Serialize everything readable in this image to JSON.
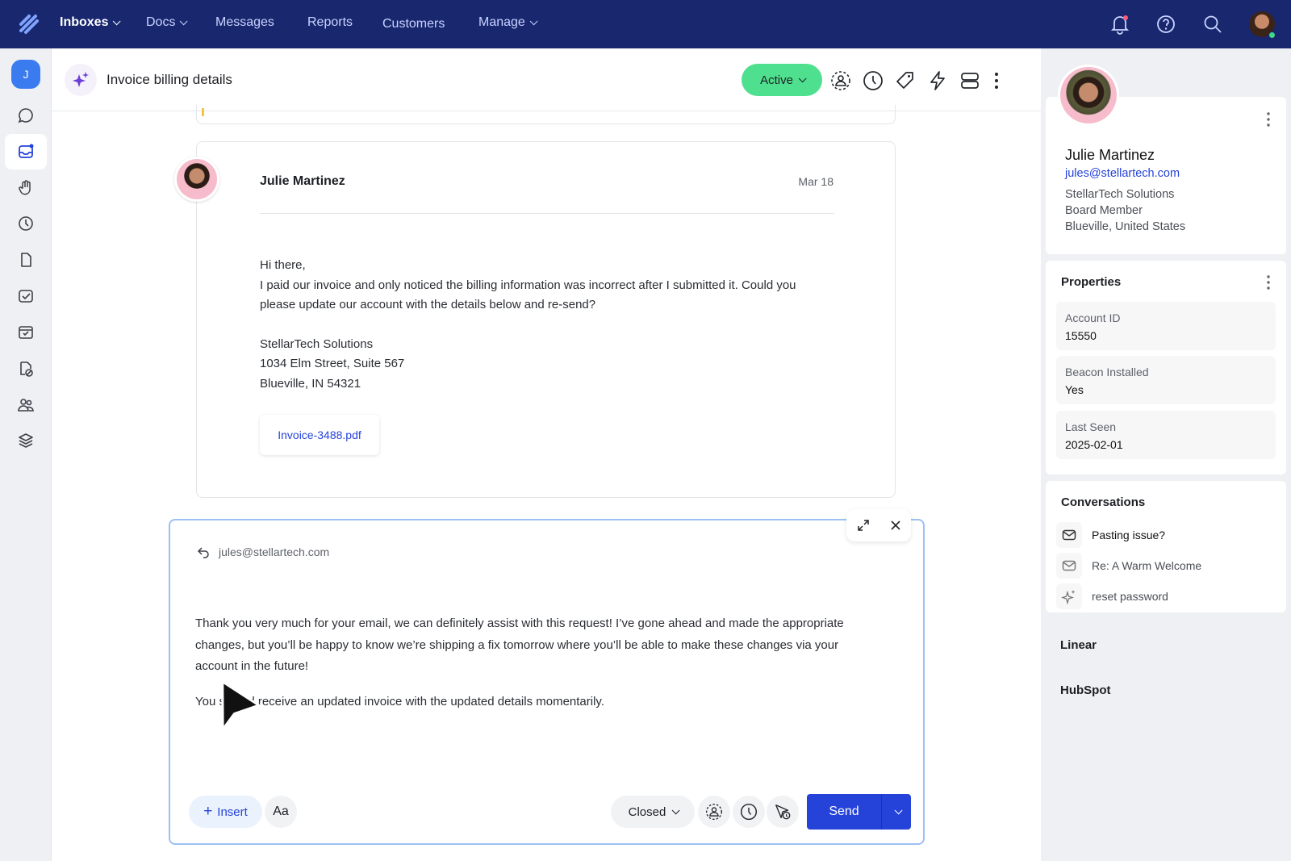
{
  "nav": {
    "items": [
      {
        "label": "Inboxes",
        "dropdown": true,
        "active": true
      },
      {
        "label": "Docs",
        "dropdown": true
      },
      {
        "label": "Messages"
      },
      {
        "label": "Reports"
      },
      {
        "label": "Customers"
      },
      {
        "label": "Manage",
        "dropdown": true
      }
    ],
    "icons": [
      "notification-bell-icon",
      "help-icon",
      "search-icon",
      "user-avatar"
    ]
  },
  "sidebar": {
    "avatar_initial": "J",
    "icons": [
      "chat-icon",
      "inbox-icon",
      "hand-icon",
      "clock-icon",
      "document-icon",
      "checklist-icon",
      "archive-icon",
      "spam-icon",
      "contacts-icon",
      "layers-icon"
    ],
    "selected": "inbox-icon"
  },
  "header": {
    "title": "Invoice billing details",
    "status": "Active",
    "status_color": "#4fe08f",
    "actions": [
      "assign-icon",
      "snooze-icon",
      "tag-icon",
      "workflow-icon",
      "layout-icon",
      "more-icon"
    ]
  },
  "message": {
    "author": "Julie Martinez",
    "date": "Mar 18",
    "greeting": "Hi there,",
    "body": "I paid our invoice and only noticed the billing information was  incorrect after I submitted it. Could you please update our account with the details below and re-send?",
    "address": [
      "StellarTech Solutions",
      "1034 Elm Street, Suite 567",
      "Blueville, IN 54321"
    ],
    "attachment": "Invoice-3488.pdf"
  },
  "composer": {
    "to": "jules@stellartech.com",
    "paragraph1": "Thank you very much for your email, we can definitely assist with this request! I’ve gone ahead and made the appropriate changes, but you’ll be happy to know we’re shipping a fix tomorrow where you’ll be able to make these changes via your account in the future!",
    "paragraph2": "You should receive an updated invoice with the updated details momentarily.",
    "insert_label": "Insert",
    "format_label": "Aa",
    "status_label": "Closed",
    "send_label": "Send",
    "accent": "#2643d9"
  },
  "customer": {
    "name": "Julie Martinez",
    "email": "jules@stellartech.com",
    "company": "StellarTech Solutions",
    "title": "Board Member",
    "location": "Blueville, United States"
  },
  "properties": {
    "title": "Properties",
    "items": [
      {
        "label": "Account ID",
        "value": "15550"
      },
      {
        "label": "Beacon Installed",
        "value": "Yes"
      },
      {
        "label": "Last Seen",
        "value": "2025-02-01"
      }
    ]
  },
  "conversations": {
    "title": "Conversations",
    "items": [
      {
        "label": "Pasting issue?",
        "icon": "mail-icon"
      },
      {
        "label": "Re: A Warm Welcome",
        "icon": "mail-icon"
      },
      {
        "label": "reset password",
        "icon": "sparkle-icon"
      }
    ]
  },
  "integrations": [
    "Linear",
    "HubSpot"
  ]
}
